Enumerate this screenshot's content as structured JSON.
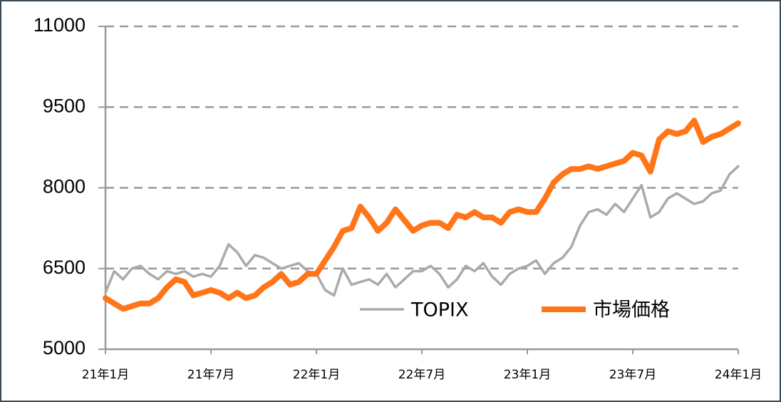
{
  "chart_data": {
    "type": "line",
    "categories": [
      "21年1月",
      null,
      null,
      null,
      null,
      null,
      null,
      null,
      null,
      null,
      null,
      null,
      "21年7月",
      null,
      null,
      null,
      null,
      null,
      null,
      null,
      null,
      null,
      null,
      null,
      "22年1月",
      null,
      null,
      null,
      null,
      null,
      null,
      null,
      null,
      null,
      null,
      null,
      "22年7月",
      null,
      null,
      null,
      null,
      null,
      null,
      null,
      null,
      null,
      null,
      null,
      "23年1月",
      null,
      null,
      null,
      null,
      null,
      null,
      null,
      null,
      null,
      null,
      null,
      "23年7月",
      null,
      null,
      null,
      null,
      null,
      null,
      null,
      null,
      null,
      null,
      null,
      "24年1月"
    ],
    "series": [
      {
        "name": "TOPIX",
        "color": "#aaaaaa",
        "values": [
          6050,
          6450,
          6300,
          6500,
          6550,
          6400,
          6300,
          6450,
          6400,
          6450,
          6350,
          6400,
          6350,
          6550,
          6950,
          6800,
          6550,
          6750,
          6700,
          6600,
          6500,
          6550,
          6600,
          6450,
          6400,
          6100,
          6000,
          6500,
          6200,
          6250,
          6300,
          6200,
          6400,
          6150,
          6300,
          6450,
          6450,
          6550,
          6400,
          6150,
          6300,
          6550,
          6450,
          6600,
          6350,
          6200,
          6400,
          6500,
          6550,
          6650,
          6400,
          6600,
          6700,
          6900,
          7300,
          7550,
          7600,
          7500,
          7700,
          7550,
          7800,
          8050,
          7450,
          7550,
          7800,
          7900,
          7800,
          7700,
          7750,
          7900,
          7950,
          8250,
          8400
        ]
      },
      {
        "name": "市場価格",
        "color": "#ff7518",
        "values": [
          5950,
          5850,
          5750,
          5800,
          5850,
          5850,
          5950,
          6150,
          6300,
          6250,
          6000,
          6050,
          6100,
          6050,
          5950,
          6050,
          5950,
          6000,
          6150,
          6250,
          6400,
          6200,
          6250,
          6400,
          6400,
          6650,
          6900,
          7200,
          7250,
          7650,
          7450,
          7200,
          7350,
          7600,
          7400,
          7200,
          7300,
          7350,
          7350,
          7250,
          7500,
          7450,
          7550,
          7450,
          7450,
          7350,
          7550,
          7600,
          7550,
          7550,
          7800,
          8100,
          8250,
          8350,
          8350,
          8400,
          8350,
          8400,
          8450,
          8500,
          8650,
          8600,
          8300,
          8900,
          9050,
          9000,
          9050,
          9250,
          8850,
          8950,
          9000,
          9100,
          9200
        ]
      }
    ],
    "ylim": [
      5000,
      11000
    ],
    "yticks": [
      5000,
      6500,
      8000,
      9500,
      11000
    ],
    "grid": true
  }
}
